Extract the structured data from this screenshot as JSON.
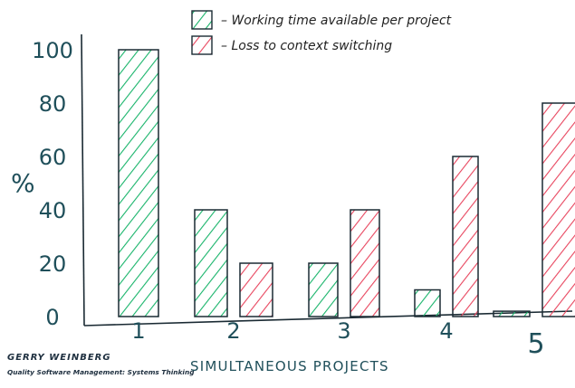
{
  "chart_data": {
    "type": "bar",
    "categories": [
      "1",
      "2",
      "3",
      "4",
      "5"
    ],
    "series": [
      {
        "name": "Working time available per project",
        "values": [
          100,
          40,
          20,
          10,
          2
        ]
      },
      {
        "name": "Loss to context switching",
        "values": [
          0,
          20,
          40,
          60,
          80
        ]
      }
    ],
    "xlabel": "SIMULTANEOUS PROJECTS",
    "ylabel": "%",
    "yticks": [
      "0",
      "20",
      "40",
      "60",
      "80",
      "100"
    ],
    "ylim": [
      0,
      110
    ],
    "grid": false,
    "legend_placement": "top",
    "colors": {
      "working": "#18b46a",
      "loss": "#e8455e",
      "ink": "#1f4f5a"
    }
  },
  "legend": {
    "working": "– Working time available per project",
    "loss": "– Loss to context switching"
  },
  "credit": {
    "line1": "GERRY WEINBERG",
    "line2": "Quality Software Management: Systems Thinking"
  }
}
